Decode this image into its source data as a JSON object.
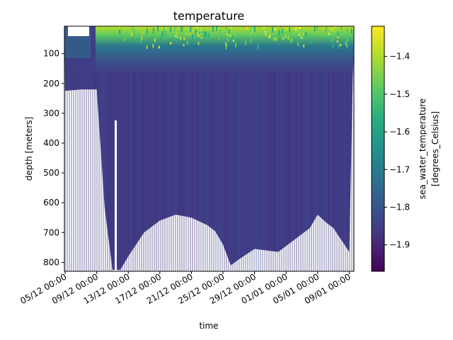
{
  "chart_data": {
    "type": "heatmap",
    "title": "temperature",
    "xlabel": "time",
    "ylabel": "depth [meters]",
    "x_ticks": [
      "05/12 00:00",
      "09/12 00:00",
      "13/12 00:00",
      "17/12 00:00",
      "21/12 00:00",
      "25/12 00:00",
      "29/12 00:00",
      "01/01 00:00",
      "05/01 00:00",
      "09/01 00:00"
    ],
    "y_ticks": [
      100,
      200,
      300,
      400,
      500,
      600,
      700,
      800
    ],
    "ylim": [
      830,
      8
    ],
    "y_inverted": true,
    "colorbar": {
      "label_line1": "sea_water_temperature",
      "label_line2": "[degrees_Celsius]",
      "range": [
        -1.97,
        -1.32
      ],
      "ticks": [
        -1.4,
        -1.5,
        -1.6,
        -1.7,
        -1.8,
        -1.9
      ],
      "tick_labels": [
        "−1.4",
        "−1.5",
        "−1.6",
        "−1.7",
        "−1.8",
        "−1.9"
      ],
      "colormap": "viridis"
    },
    "max_depth_profile": {
      "time": [
        "05/12 00:00",
        "07/12 00:00",
        "08/12 00:00",
        "09/12 00:00",
        "10/12 00:00",
        "11/12 00:00",
        "12/12 00:00",
        "13/12 00:00",
        "15/12 00:00",
        "17/12 00:00",
        "19/12 00:00",
        "21/12 00:00",
        "23/12 00:00",
        "24/12 00:00",
        "25/12 00:00",
        "26/12 00:00",
        "27/12 00:00",
        "29/12 00:00",
        "01/01 00:00",
        "03/01 00:00",
        "05/01 00:00",
        "06/01 00:00",
        "07/01 00:00",
        "08/01 00:00",
        "10/01 00:00"
      ],
      "max_depth_m": [
        225,
        220,
        220,
        220,
        615,
        825,
        825,
        780,
        700,
        660,
        640,
        650,
        675,
        695,
        740,
        810,
        790,
        755,
        765,
        725,
        685,
        640,
        665,
        685,
        765
      ]
    },
    "surface_temperature_c": -1.35,
    "interior_temperature_c": -1.9
  }
}
